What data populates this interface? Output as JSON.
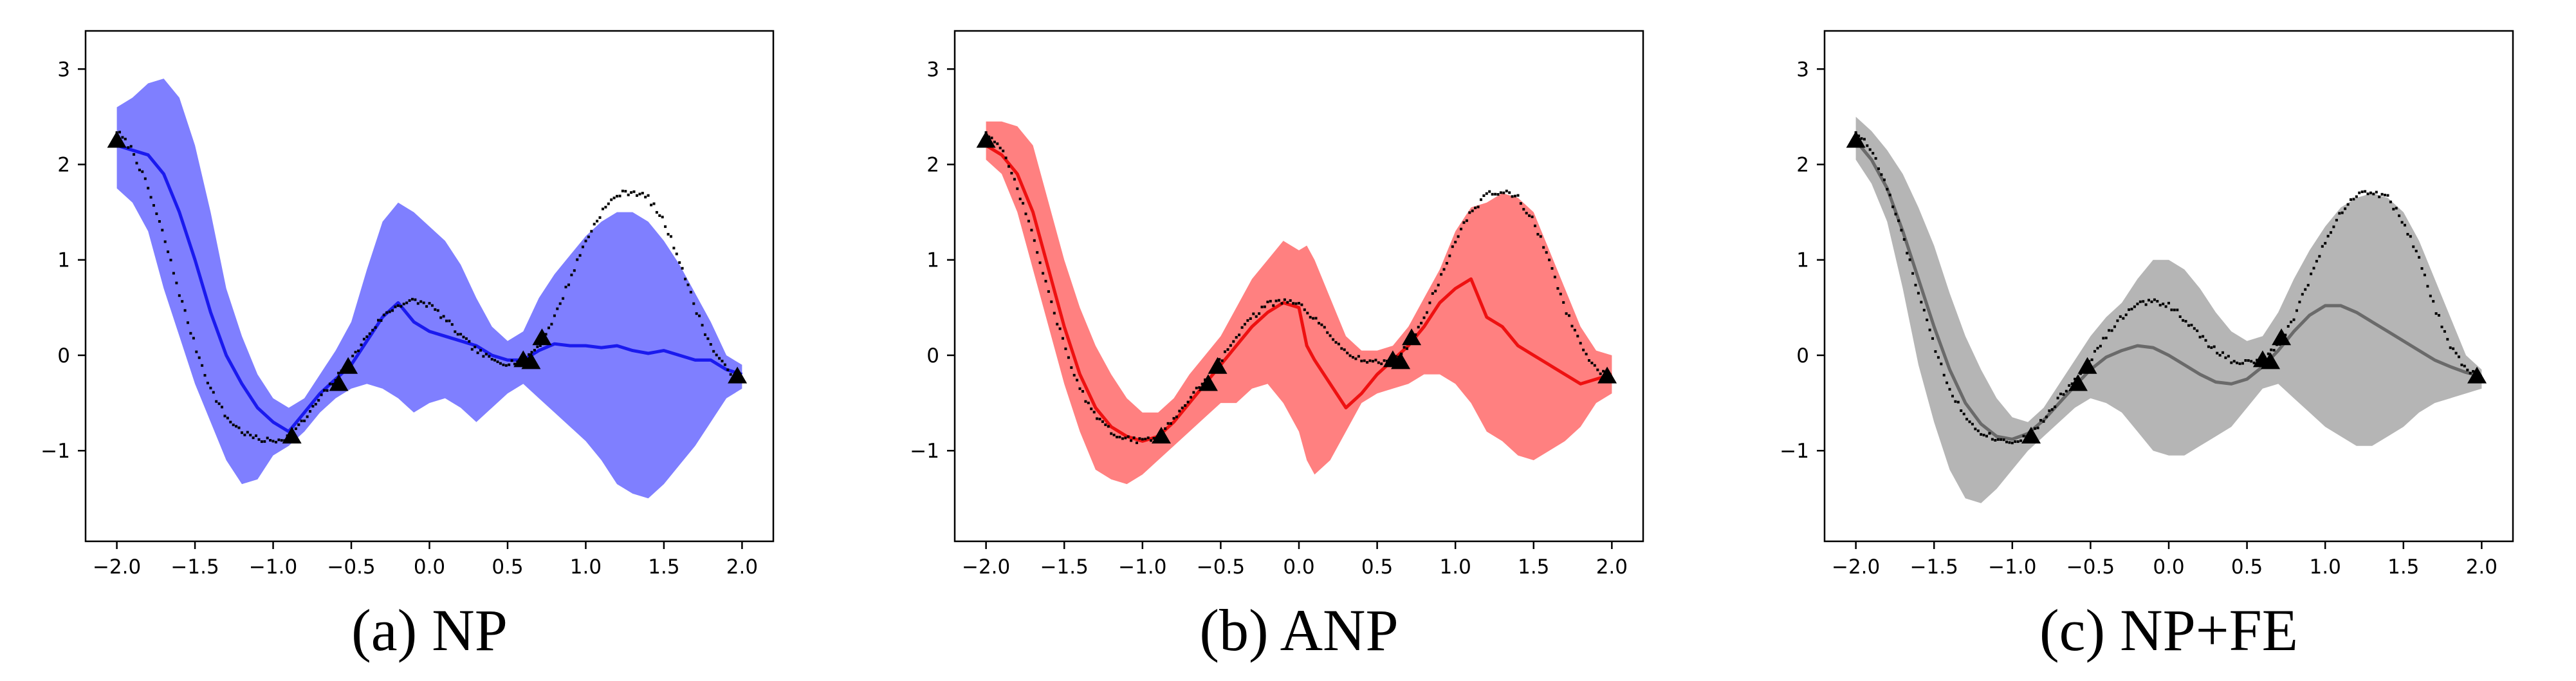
{
  "chart_data": [
    {
      "type": "line",
      "caption": "(a) NP",
      "xlim": [
        -2.2,
        2.2
      ],
      "ylim": [
        -1.95,
        3.4
      ],
      "xticks": [
        "−2.0",
        "−1.5",
        "−1.0",
        "−0.5",
        "0.0",
        "0.5",
        "1.0",
        "1.5",
        "2.0"
      ],
      "yticks": [
        "−1",
        "0",
        "1",
        "2",
        "3"
      ],
      "grid": false,
      "colors": {
        "band": "#7f7fff",
        "mean": "#1a1aee",
        "truth": "#000000",
        "context": "#000000"
      },
      "context_points": {
        "x": [
          -2.0,
          -0.88,
          -0.58,
          -0.52,
          0.6,
          0.65,
          0.72,
          1.97
        ],
        "y": [
          2.25,
          -0.85,
          -0.3,
          -0.12,
          -0.05,
          -0.07,
          0.18,
          -0.22
        ]
      },
      "mean": {
        "x": [
          -2.0,
          -1.9,
          -1.8,
          -1.7,
          -1.6,
          -1.5,
          -1.4,
          -1.3,
          -1.2,
          -1.1,
          -1.0,
          -0.9,
          -0.8,
          -0.7,
          -0.6,
          -0.5,
          -0.4,
          -0.3,
          -0.2,
          -0.1,
          0.0,
          0.1,
          0.2,
          0.3,
          0.4,
          0.5,
          0.6,
          0.7,
          0.8,
          0.9,
          1.0,
          1.1,
          1.2,
          1.3,
          1.4,
          1.5,
          1.6,
          1.7,
          1.8,
          1.9,
          2.0
        ],
        "y": [
          2.2,
          2.15,
          2.1,
          1.9,
          1.5,
          1.0,
          0.45,
          0.0,
          -0.3,
          -0.55,
          -0.7,
          -0.8,
          -0.6,
          -0.4,
          -0.25,
          -0.1,
          0.15,
          0.4,
          0.55,
          0.35,
          0.25,
          0.2,
          0.15,
          0.1,
          0.0,
          -0.05,
          -0.05,
          0.05,
          0.12,
          0.1,
          0.1,
          0.08,
          0.1,
          0.05,
          0.02,
          0.05,
          0.0,
          -0.05,
          -0.05,
          -0.15,
          -0.2
        ]
      },
      "band_upper": [
        2.6,
        2.7,
        2.85,
        2.9,
        2.7,
        2.2,
        1.5,
        0.7,
        0.2,
        -0.2,
        -0.45,
        -0.55,
        -0.45,
        -0.2,
        0.05,
        0.35,
        0.9,
        1.4,
        1.6,
        1.5,
        1.35,
        1.2,
        0.95,
        0.6,
        0.3,
        0.15,
        0.25,
        0.6,
        0.85,
        1.05,
        1.25,
        1.4,
        1.5,
        1.5,
        1.4,
        1.2,
        0.95,
        0.65,
        0.35,
        0.0,
        -0.1
      ],
      "band_lower": [
        1.75,
        1.6,
        1.3,
        0.7,
        0.2,
        -0.3,
        -0.7,
        -1.1,
        -1.35,
        -1.3,
        -1.05,
        -0.95,
        -0.8,
        -0.6,
        -0.45,
        -0.35,
        -0.3,
        -0.35,
        -0.45,
        -0.6,
        -0.5,
        -0.45,
        -0.55,
        -0.7,
        -0.55,
        -0.4,
        -0.3,
        -0.45,
        -0.6,
        -0.75,
        -0.9,
        -1.1,
        -1.35,
        -1.45,
        -1.5,
        -1.35,
        -1.15,
        -0.95,
        -0.7,
        -0.45,
        -0.35
      ]
    },
    {
      "type": "line",
      "caption": "(b) ANP",
      "xlim": [
        -2.2,
        2.2
      ],
      "ylim": [
        -1.95,
        3.4
      ],
      "xticks": [
        "−2.0",
        "−1.5",
        "−1.0",
        "−0.5",
        "0.0",
        "0.5",
        "1.0",
        "1.5",
        "2.0"
      ],
      "yticks": [
        "−1",
        "0",
        "1",
        "2",
        "3"
      ],
      "grid": false,
      "colors": {
        "band": "#ff8080",
        "mean": "#ee1111",
        "truth": "#000000",
        "context": "#000000"
      },
      "context_points": {
        "x": [
          -2.0,
          -0.88,
          -0.58,
          -0.52,
          0.6,
          0.65,
          0.72,
          1.97
        ],
        "y": [
          2.25,
          -0.85,
          -0.3,
          -0.12,
          -0.05,
          -0.07,
          0.18,
          -0.22
        ]
      },
      "mean": {
        "x": [
          -2.0,
          -1.9,
          -1.8,
          -1.7,
          -1.6,
          -1.5,
          -1.4,
          -1.3,
          -1.2,
          -1.1,
          -1.0,
          -0.9,
          -0.8,
          -0.7,
          -0.6,
          -0.5,
          -0.4,
          -0.3,
          -0.2,
          -0.1,
          0.0,
          0.05,
          0.1,
          0.2,
          0.3,
          0.4,
          0.5,
          0.6,
          0.7,
          0.8,
          0.9,
          1.0,
          1.1,
          1.2,
          1.3,
          1.4,
          1.5,
          1.6,
          1.7,
          1.8,
          1.9,
          2.0
        ],
        "y": [
          2.2,
          2.1,
          1.9,
          1.5,
          0.9,
          0.3,
          -0.2,
          -0.55,
          -0.75,
          -0.85,
          -0.9,
          -0.85,
          -0.7,
          -0.5,
          -0.3,
          -0.1,
          0.1,
          0.3,
          0.45,
          0.55,
          0.5,
          0.1,
          -0.05,
          -0.3,
          -0.55,
          -0.4,
          -0.2,
          -0.05,
          0.1,
          0.3,
          0.55,
          0.7,
          0.8,
          0.4,
          0.3,
          0.1,
          0.0,
          -0.1,
          -0.2,
          -0.3,
          -0.25,
          -0.2
        ]
      },
      "band_upper": [
        2.45,
        2.45,
        2.4,
        2.2,
        1.6,
        1.0,
        0.5,
        0.1,
        -0.2,
        -0.45,
        -0.6,
        -0.6,
        -0.45,
        -0.2,
        0.0,
        0.2,
        0.5,
        0.8,
        1.0,
        1.2,
        1.1,
        1.15,
        1.0,
        0.6,
        0.2,
        0.05,
        0.05,
        0.1,
        0.3,
        0.6,
        0.9,
        1.3,
        1.55,
        1.6,
        1.7,
        1.65,
        1.5,
        1.1,
        0.7,
        0.3,
        0.05,
        0.0
      ],
      "band_lower": [
        2.05,
        1.9,
        1.5,
        0.9,
        0.3,
        -0.3,
        -0.8,
        -1.2,
        -1.3,
        -1.35,
        -1.25,
        -1.1,
        -0.95,
        -0.8,
        -0.65,
        -0.5,
        -0.5,
        -0.35,
        -0.3,
        -0.5,
        -0.8,
        -1.1,
        -1.25,
        -1.1,
        -0.8,
        -0.5,
        -0.4,
        -0.35,
        -0.3,
        -0.2,
        -0.2,
        -0.3,
        -0.5,
        -0.8,
        -0.9,
        -1.05,
        -1.1,
        -1.0,
        -0.9,
        -0.75,
        -0.5,
        -0.4
      ]
    },
    {
      "type": "line",
      "caption": "(c) NP+FE",
      "xlim": [
        -2.2,
        2.2
      ],
      "ylim": [
        -1.95,
        3.4
      ],
      "xticks": [
        "−2.0",
        "−1.5",
        "−1.0",
        "−0.5",
        "0.0",
        "0.5",
        "1.0",
        "1.5",
        "2.0"
      ],
      "yticks": [
        "−1",
        "0",
        "1",
        "2",
        "3"
      ],
      "grid": false,
      "colors": {
        "band": "#b5b5b5",
        "mean": "#6a6a6a",
        "truth": "#000000",
        "context": "#000000"
      },
      "context_points": {
        "x": [
          -2.0,
          -0.88,
          -0.58,
          -0.52,
          0.6,
          0.65,
          0.72,
          1.97
        ],
        "y": [
          2.25,
          -0.85,
          -0.3,
          -0.12,
          -0.05,
          -0.07,
          0.18,
          -0.22
        ]
      },
      "mean": {
        "x": [
          -2.0,
          -1.9,
          -1.8,
          -1.7,
          -1.6,
          -1.5,
          -1.4,
          -1.3,
          -1.2,
          -1.1,
          -1.0,
          -0.9,
          -0.8,
          -0.7,
          -0.6,
          -0.5,
          -0.4,
          -0.3,
          -0.2,
          -0.1,
          0.0,
          0.1,
          0.2,
          0.3,
          0.4,
          0.5,
          0.6,
          0.7,
          0.8,
          0.9,
          1.0,
          1.1,
          1.2,
          1.3,
          1.4,
          1.5,
          1.6,
          1.7,
          1.8,
          1.9,
          2.0
        ],
        "y": [
          2.25,
          2.05,
          1.75,
          1.3,
          0.8,
          0.3,
          -0.15,
          -0.5,
          -0.72,
          -0.85,
          -0.88,
          -0.82,
          -0.68,
          -0.5,
          -0.32,
          -0.15,
          -0.02,
          0.05,
          0.1,
          0.08,
          0.0,
          -0.1,
          -0.2,
          -0.28,
          -0.3,
          -0.25,
          -0.12,
          0.05,
          0.25,
          0.42,
          0.52,
          0.52,
          0.45,
          0.35,
          0.25,
          0.15,
          0.05,
          -0.05,
          -0.12,
          -0.18,
          -0.22
        ]
      },
      "band_upper": [
        2.5,
        2.35,
        2.15,
        1.9,
        1.55,
        1.15,
        0.65,
        0.2,
        -0.15,
        -0.45,
        -0.65,
        -0.7,
        -0.55,
        -0.3,
        -0.05,
        0.2,
        0.4,
        0.55,
        0.8,
        1.0,
        1.0,
        0.9,
        0.7,
        0.45,
        0.25,
        0.15,
        0.2,
        0.45,
        0.8,
        1.1,
        1.35,
        1.55,
        1.65,
        1.7,
        1.65,
        1.5,
        1.2,
        0.8,
        0.4,
        0.0,
        -0.15
      ],
      "band_lower": [
        2.05,
        1.8,
        1.4,
        0.7,
        -0.1,
        -0.7,
        -1.2,
        -1.5,
        -1.55,
        -1.4,
        -1.2,
        -1.0,
        -0.85,
        -0.7,
        -0.55,
        -0.45,
        -0.5,
        -0.6,
        -0.8,
        -1.0,
        -1.05,
        -1.05,
        -0.95,
        -0.85,
        -0.75,
        -0.55,
        -0.35,
        -0.3,
        -0.45,
        -0.6,
        -0.75,
        -0.85,
        -0.95,
        -0.95,
        -0.85,
        -0.75,
        -0.6,
        -0.5,
        -0.45,
        -0.4,
        -0.35
      ]
    }
  ],
  "truth_curve": {
    "x": [
      -2.0,
      -1.9,
      -1.8,
      -1.7,
      -1.6,
      -1.5,
      -1.4,
      -1.3,
      -1.2,
      -1.1,
      -1.0,
      -0.9,
      -0.8,
      -0.7,
      -0.6,
      -0.5,
      -0.4,
      -0.3,
      -0.2,
      -0.1,
      0.0,
      0.1,
      0.2,
      0.3,
      0.4,
      0.5,
      0.6,
      0.7,
      0.8,
      0.9,
      1.0,
      1.1,
      1.2,
      1.3,
      1.4,
      1.5,
      1.6,
      1.7,
      1.8,
      1.9,
      2.0
    ],
    "y": [
      2.35,
      2.15,
      1.75,
      1.25,
      0.65,
      0.1,
      -0.35,
      -0.65,
      -0.8,
      -0.88,
      -0.9,
      -0.85,
      -0.68,
      -0.45,
      -0.25,
      -0.05,
      0.2,
      0.4,
      0.53,
      0.57,
      0.53,
      0.38,
      0.2,
      0.05,
      -0.05,
      -0.08,
      -0.05,
      0.1,
      0.4,
      0.8,
      1.2,
      1.5,
      1.68,
      1.72,
      1.65,
      1.4,
      1.0,
      0.5,
      0.1,
      -0.15,
      -0.25
    ]
  }
}
